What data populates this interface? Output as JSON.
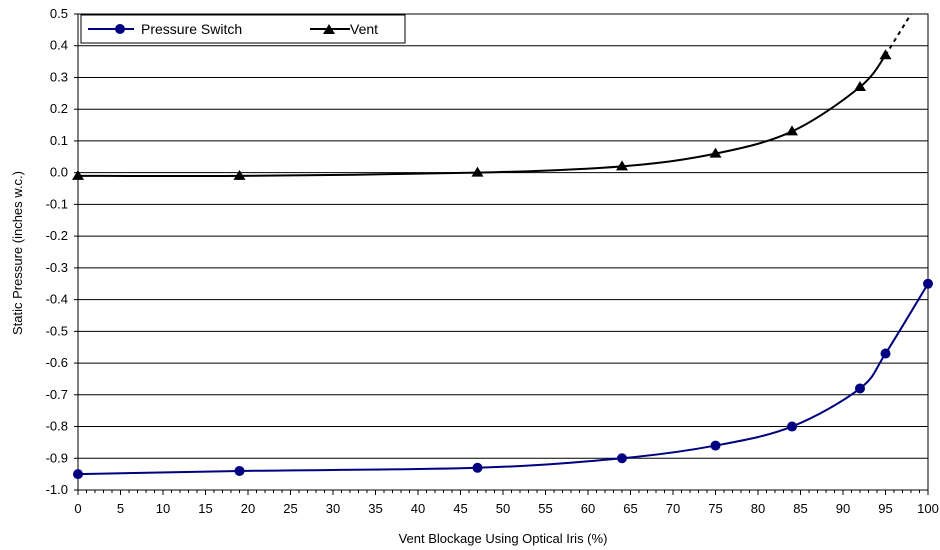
{
  "chart_data": {
    "type": "line",
    "xlabel": "Vent Blockage Using Optical Iris (%)",
    "ylabel": "Static Pressure (inches w.c.)",
    "xlim": [
      0,
      100
    ],
    "ylim": [
      -1.0,
      0.5
    ],
    "x_ticks": [
      "0",
      "5",
      "10",
      "15",
      "20",
      "25",
      "30",
      "35",
      "40",
      "45",
      "50",
      "55",
      "60",
      "65",
      "70",
      "75",
      "80",
      "85",
      "90",
      "95",
      "100"
    ],
    "y_ticks": [
      "0.5",
      "0.4",
      "0.3",
      "0.2",
      "0.1",
      "0.0",
      "-0.1",
      "-0.2",
      "-0.3",
      "-0.4",
      "-0.5",
      "-0.6",
      "-0.7",
      "-0.8",
      "-0.9",
      "-1.0"
    ],
    "grid": "horizontal",
    "legend_position": "top-left",
    "series": [
      {
        "name": "Pressure Switch",
        "marker": "circle",
        "color": "#000080",
        "x": [
          0,
          19,
          47,
          64,
          75,
          84,
          92,
          95,
          100
        ],
        "y": [
          -0.95,
          -0.94,
          -0.93,
          -0.9,
          -0.86,
          -0.8,
          -0.68,
          -0.57,
          -0.35
        ]
      },
      {
        "name": "Vent",
        "marker": "triangle",
        "color": "#000000",
        "x": [
          0,
          19,
          47,
          64,
          75,
          84,
          92,
          95
        ],
        "y": [
          -0.01,
          -0.01,
          0.0,
          0.02,
          0.06,
          0.13,
          0.27,
          0.37
        ],
        "extrapolation": {
          "style": "dashed",
          "x": [
            95,
            98
          ],
          "y": [
            0.37,
            0.5
          ]
        }
      }
    ]
  }
}
